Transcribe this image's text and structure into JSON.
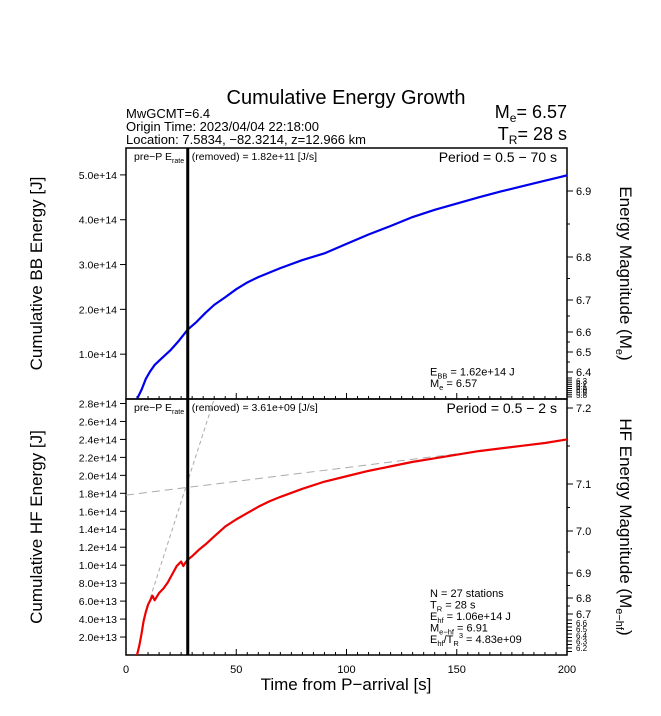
{
  "header": {
    "title": "Cumulative Energy Growth",
    "info_lines": [
      "MwGCMT=6.4",
      "Origin Time: 2023/04/04 22:18:00",
      "Location: 7.5834, −82.3214, z=12.966 km"
    ],
    "me_label": "M",
    "me_sub": "e",
    "me_value": "= 6.57",
    "tr_label": "T",
    "tr_sub": "R",
    "tr_value": "= 28 s"
  },
  "chart_data": [
    {
      "type": "line",
      "panel": "top",
      "title": "",
      "xlabel": "",
      "ylabel": "Cumulative BB Energy [J]",
      "ylabel_right": "Energy Magnitude (M",
      "ylabel_right_sub": "e",
      "ylabel_right_end": ")",
      "xlim": [
        0,
        200
      ],
      "ylim": [
        0,
        560000000000000.0
      ],
      "yticks": [
        100000000000000.0,
        200000000000000.0,
        300000000000000.0,
        400000000000000.0,
        500000000000000.0
      ],
      "ytick_labels": [
        "1.0e+14",
        "2.0e+14",
        "3.0e+14",
        "4.0e+14",
        "5.0e+14"
      ],
      "right_ticks": [
        6.4,
        6.5,
        6.6,
        6.7,
        6.8,
        6.9
      ],
      "right_tick_labels": [
        "6.4",
        "6.5",
        "6.6",
        "6.7",
        "6.8",
        "6.9"
      ],
      "right_crowded_labels": [
        "6.3",
        "6.2",
        "6.1",
        "6.0",
        "5.9",
        "5.8"
      ],
      "period_label": "Period = 0.5 − 70 s",
      "preP_label": "pre−P E",
      "preP_sub": "rate",
      "preP_value": "(removed) = 1.82e+11 [J/s]",
      "annotation_lines": [
        {
          "main": "E",
          "sub": "BB",
          "rest": " = 1.62e+14 J"
        },
        {
          "main": "M",
          "sub": "e",
          "rest": " = 6.57"
        }
      ],
      "series": [
        {
          "name": "BB energy",
          "color": "#0000ee",
          "x": [
            5,
            7,
            9,
            11,
            13,
            16,
            20,
            24,
            28,
            32,
            36,
            40,
            45,
            50,
            55,
            60,
            65,
            70,
            80,
            90,
            100,
            110,
            120,
            130,
            140,
            150,
            160,
            170,
            180,
            190,
            195,
            200
          ],
          "y": [
            0,
            20000000000000.0,
            45000000000000.0,
            62000000000000.0,
            76000000000000.0,
            90000000000000.0,
            108000000000000.0,
            130000000000000.0,
            155000000000000.0,
            172000000000000.0,
            192000000000000.0,
            210000000000000.0,
            227000000000000.0,
            245000000000000.0,
            260000000000000.0,
            272000000000000.0,
            282000000000000.0,
            292000000000000.0,
            310000000000000.0,
            325000000000000.0,
            346000000000000.0,
            367000000000000.0,
            386000000000000.0,
            406000000000000.0,
            422000000000000.0,
            436000000000000.0,
            450000000000000.0,
            463000000000000.0,
            475000000000000.0,
            487000000000000.0,
            493000000000000.0,
            499000000000000.0
          ]
        }
      ]
    },
    {
      "type": "line",
      "panel": "bottom",
      "title": "",
      "xlabel": "Time from P−arrival [s]",
      "ylabel": "Cumulative HF Energy [J]",
      "ylabel_right": "HF Energy Magnitude (M",
      "ylabel_right_sub": "e−hf",
      "ylabel_right_end": ")",
      "xlim": [
        0,
        200
      ],
      "ylim": [
        0,
        285000000000000.0
      ],
      "xticks": [
        0,
        50,
        100,
        150,
        200
      ],
      "xtick_labels": [
        "0",
        "50",
        "100",
        "150",
        "200"
      ],
      "yticks": [
        20000000000000.0,
        40000000000000.0,
        60000000000000.0,
        80000000000000.0,
        100000000000000.0,
        120000000000000.0,
        140000000000000.0,
        160000000000000.0,
        180000000000000.0,
        200000000000000.0,
        220000000000000.0,
        240000000000000.0,
        260000000000000.0,
        280000000000000.0
      ],
      "ytick_labels": [
        "2.0e+13",
        "4.0e+13",
        "6.0e+13",
        "8.0e+13",
        "1.0e+14",
        "1.2e+14",
        "1.4e+14",
        "1.6e+14",
        "1.8e+14",
        "2.0e+14",
        "2.2e+14",
        "2.4e+14",
        "2.6e+14",
        "2.8e+14"
      ],
      "right_ticks": [
        6.7,
        6.8,
        6.9,
        7.0,
        7.1,
        7.2
      ],
      "right_tick_labels": [
        "6.7",
        "6.8",
        "6.9",
        "7.0",
        "7.1",
        "7.2"
      ],
      "right_crowded_labels": [
        "6.6",
        "6.5",
        "6.4",
        "6.3",
        "6.2"
      ],
      "period_label": "Period = 0.5 − 2 s",
      "preP_label": "pre−P E",
      "preP_sub": "rate",
      "preP_value": "(removed) = 3.61e+09 [J/s]",
      "annotation_lines": [
        {
          "main": "N = 27 stations",
          "sub": "",
          "rest": ""
        },
        {
          "main": "T",
          "sub": "R",
          "rest": " = 28  s"
        },
        {
          "main": "E",
          "sub": "hf",
          "rest": " = 1.06e+14 J"
        },
        {
          "main": "M",
          "sub": "e−hf",
          "rest": " = 6.91"
        },
        {
          "main": "E",
          "sub": "hf",
          "rest": "/T",
          "sub2": "R",
          "sup": "3",
          "rest2": " =  4.83e+09"
        }
      ],
      "series": [
        {
          "name": "HF energy",
          "color": "#ee0000",
          "x": [
            5,
            6,
            7,
            8,
            9,
            10,
            11,
            12,
            13,
            15,
            17,
            19,
            21,
            23,
            25,
            26,
            27,
            28,
            30,
            33,
            36,
            40,
            45,
            50,
            55,
            60,
            65,
            70,
            80,
            90,
            100,
            110,
            120,
            130,
            140,
            150,
            160,
            170,
            180,
            190,
            200
          ],
          "y": [
            0,
            10000000000000.0,
            23000000000000.0,
            38000000000000.0,
            48000000000000.0,
            56000000000000.0,
            61000000000000.0,
            66000000000000.0,
            61000000000000.0,
            69000000000000.0,
            74000000000000.0,
            81000000000000.0,
            90000000000000.0,
            99000000000000.0,
            104000000000000.0,
            99000000000000.0,
            103000000000000.0,
            106000000000000.0,
            110000000000000.0,
            117000000000000.0,
            123000000000000.0,
            132000000000000.0,
            143000000000000.0,
            151000000000000.0,
            158000000000000.0,
            165000000000000.0,
            171000000000000.0,
            176000000000000.0,
            185000000000000.0,
            193000000000000.0,
            199000000000000.0,
            205000000000000.0,
            210000000000000.0,
            215000000000000.0,
            219000000000000.0,
            223000000000000.0,
            227000000000000.0,
            230000000000000.0,
            233000000000000.0,
            236000000000000.0,
            240000000000000.0
          ]
        }
      ],
      "fit_lines": [
        {
          "name": "plateau fit",
          "color": "#aaaaaa",
          "x": [
            0,
            150
          ],
          "y": [
            178000000000000.0,
            224000000000000.0
          ]
        },
        {
          "name": "initial slope fit",
          "color": "#aaaaaa",
          "x": [
            10,
            40
          ],
          "y": [
            56000000000000.0,
            285000000000000.0
          ]
        }
      ]
    }
  ],
  "shared": {
    "tr_marker_x": 28,
    "tr_marker_color": "#000000"
  }
}
